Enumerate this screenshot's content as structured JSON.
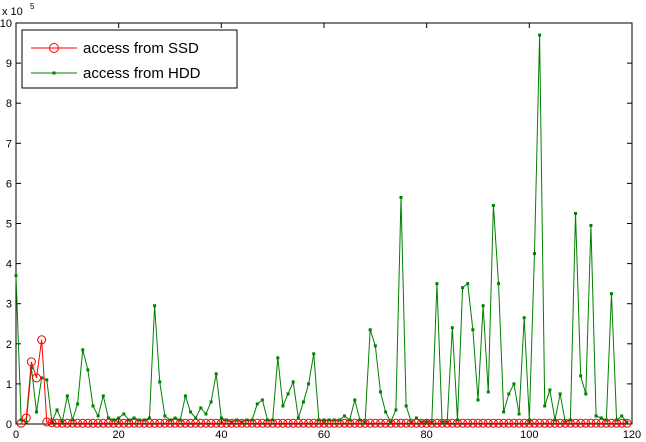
{
  "chart_data": {
    "type": "line",
    "title": "",
    "xlabel": "",
    "ylabel": "",
    "xlim": [
      0,
      120
    ],
    "ylim": [
      0,
      10
    ],
    "y_exponent_label": "x 10",
    "y_exponent_power": "5",
    "x_ticks": [
      "0",
      "20",
      "40",
      "60",
      "80",
      "100",
      "120"
    ],
    "y_ticks": [
      "0",
      "1",
      "2",
      "3",
      "4",
      "5",
      "6",
      "7",
      "8",
      "9",
      "10"
    ],
    "grid": false,
    "legend_position": "top-left",
    "series": [
      {
        "name": "access from SSD",
        "color": "#ff0000",
        "marker": "circle",
        "x": [
          1,
          2,
          3,
          4,
          5,
          6,
          7,
          8,
          9,
          10,
          11,
          12,
          13,
          14,
          15,
          16,
          17,
          18,
          19,
          20,
          21,
          22,
          23,
          24,
          25,
          26,
          27,
          28,
          29,
          30,
          31,
          32,
          33,
          34,
          35,
          36,
          37,
          38,
          39,
          40,
          41,
          42,
          43,
          44,
          45,
          46,
          47,
          48,
          49,
          50,
          51,
          52,
          53,
          54,
          55,
          56,
          57,
          58,
          59,
          60,
          61,
          62,
          63,
          64,
          65,
          66,
          67,
          68,
          69,
          70,
          71,
          72,
          73,
          74,
          75,
          76,
          77,
          78,
          79,
          80,
          81,
          82,
          83,
          84,
          85,
          86,
          87,
          88,
          89,
          90,
          91,
          92,
          93,
          94,
          95,
          96,
          97,
          98,
          99,
          100,
          101,
          102,
          103,
          104,
          105,
          106,
          107,
          108,
          109,
          110,
          111,
          112,
          113,
          114,
          115,
          116,
          117,
          118,
          119
        ],
        "y": [
          0.02,
          0.15,
          1.55,
          1.15,
          2.1,
          0.05,
          0.03,
          0.02,
          0.02,
          0.02,
          0.02,
          0.02,
          0.02,
          0.02,
          0.02,
          0.02,
          0.02,
          0.02,
          0.02,
          0.02,
          0.02,
          0.02,
          0.02,
          0.02,
          0.02,
          0.02,
          0.02,
          0.02,
          0.02,
          0.02,
          0.02,
          0.02,
          0.02,
          0.02,
          0.02,
          0.02,
          0.02,
          0.02,
          0.02,
          0.02,
          0.02,
          0.02,
          0.02,
          0.02,
          0.02,
          0.02,
          0.02,
          0.02,
          0.02,
          0.02,
          0.02,
          0.02,
          0.02,
          0.02,
          0.02,
          0.02,
          0.02,
          0.02,
          0.02,
          0.02,
          0.02,
          0.02,
          0.02,
          0.02,
          0.02,
          0.02,
          0.02,
          0.02,
          0.02,
          0.02,
          0.02,
          0.02,
          0.02,
          0.02,
          0.02,
          0.02,
          0.02,
          0.02,
          0.02,
          0.02,
          0.02,
          0.02,
          0.02,
          0.02,
          0.02,
          0.02,
          0.02,
          0.02,
          0.02,
          0.02,
          0.02,
          0.02,
          0.02,
          0.02,
          0.02,
          0.02,
          0.02,
          0.02,
          0.02,
          0.02,
          0.02,
          0.02,
          0.02,
          0.02,
          0.02,
          0.02,
          0.02,
          0.02,
          0.02,
          0.02,
          0.02,
          0.02,
          0.02,
          0.02,
          0.02,
          0.02,
          0.02,
          0.02,
          0.02
        ]
      },
      {
        "name": "access from HDD",
        "color": "#008000",
        "marker": "dot",
        "x": [
          0,
          1,
          2,
          3,
          4,
          5,
          6,
          7,
          8,
          9,
          10,
          11,
          12,
          13,
          14,
          15,
          16,
          17,
          18,
          19,
          20,
          21,
          22,
          23,
          24,
          25,
          26,
          27,
          28,
          29,
          30,
          31,
          32,
          33,
          34,
          35,
          36,
          37,
          38,
          39,
          40,
          41,
          42,
          43,
          44,
          45,
          46,
          47,
          48,
          49,
          50,
          51,
          52,
          53,
          54,
          55,
          56,
          57,
          58,
          59,
          60,
          61,
          62,
          63,
          64,
          65,
          66,
          67,
          68,
          69,
          70,
          71,
          72,
          73,
          74,
          75,
          76,
          77,
          78,
          79,
          80,
          81,
          82,
          83,
          84,
          85,
          86,
          87,
          88,
          89,
          90,
          91,
          92,
          93,
          94,
          95,
          96,
          97,
          98,
          99,
          100,
          101,
          102,
          103,
          104,
          105,
          106,
          107,
          108,
          109,
          110,
          111,
          112,
          113,
          114,
          115,
          116,
          117,
          118,
          119
        ],
        "y": [
          3.7,
          0.1,
          0.05,
          1.4,
          0.3,
          1.15,
          1.1,
          0.05,
          0.35,
          0.05,
          0.7,
          0.1,
          0.5,
          1.85,
          1.35,
          0.45,
          0.2,
          0.7,
          0.15,
          0.1,
          0.15,
          0.25,
          0.1,
          0.15,
          0.1,
          0.1,
          0.15,
          2.95,
          1.05,
          0.2,
          0.1,
          0.15,
          0.1,
          0.7,
          0.3,
          0.15,
          0.4,
          0.25,
          0.55,
          1.25,
          0.15,
          0.1,
          0.05,
          0.1,
          0.05,
          0.1,
          0.1,
          0.5,
          0.6,
          0.1,
          0.1,
          1.65,
          0.45,
          0.75,
          1.05,
          0.15,
          0.55,
          1.0,
          1.75,
          0.1,
          0.1,
          0.1,
          0.1,
          0.1,
          0.2,
          0.1,
          0.6,
          0.1,
          0.05,
          2.35,
          1.95,
          0.8,
          0.3,
          0.05,
          0.35,
          5.65,
          0.45,
          0.05,
          0.15,
          0.05,
          0.05,
          0.05,
          3.5,
          0.05,
          0.05,
          2.4,
          0.1,
          3.4,
          3.5,
          2.35,
          0.6,
          2.95,
          0.8,
          5.45,
          3.5,
          0.3,
          0.75,
          1.0,
          0.25,
          2.65,
          0.1,
          4.25,
          9.7,
          0.45,
          0.85,
          0.1,
          0.75,
          0.05,
          0.1,
          5.25,
          1.2,
          0.75,
          4.95,
          0.2,
          0.15,
          0.1,
          3.25,
          0.1,
          0.2,
          0.05
        ]
      }
    ]
  }
}
